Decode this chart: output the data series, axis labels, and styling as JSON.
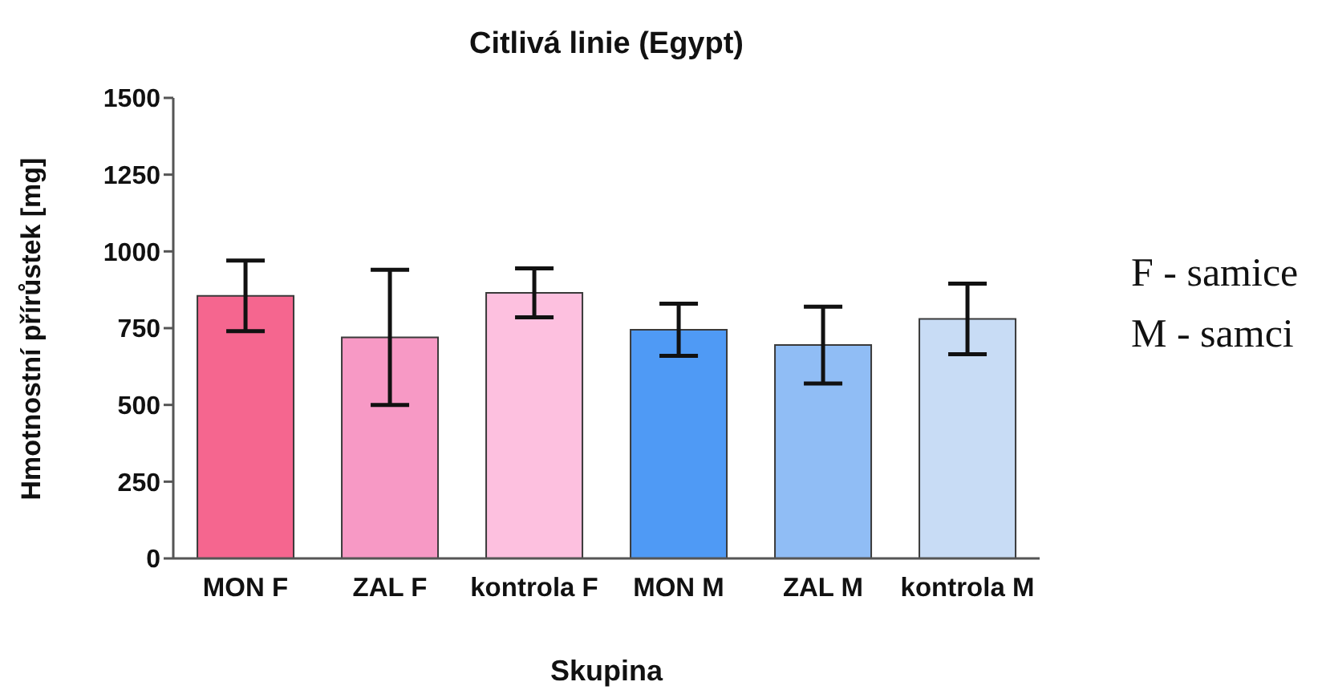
{
  "chart_data": {
    "type": "bar",
    "title": "Citlivá linie (Egypt)",
    "xlabel": "Skupina",
    "ylabel": "Hmotnostní přírůstek [mg]",
    "annotations": [
      "F - samice",
      "M - samci"
    ],
    "categories": [
      "MON F",
      "ZAL F",
      "kontrola F",
      "MON M",
      "ZAL M",
      "kontrola M"
    ],
    "values": [
      855,
      720,
      865,
      745,
      695,
      780
    ],
    "errors": [
      115,
      220,
      80,
      85,
      125,
      115
    ],
    "colors": [
      "#f5668f",
      "#f799c5",
      "#fdc0df",
      "#4f9af5",
      "#90bdf5",
      "#c8dcf5"
    ],
    "ylim": [
      0,
      1500
    ],
    "yticks": [
      0,
      250,
      500,
      750,
      1000,
      1250,
      1500
    ]
  }
}
